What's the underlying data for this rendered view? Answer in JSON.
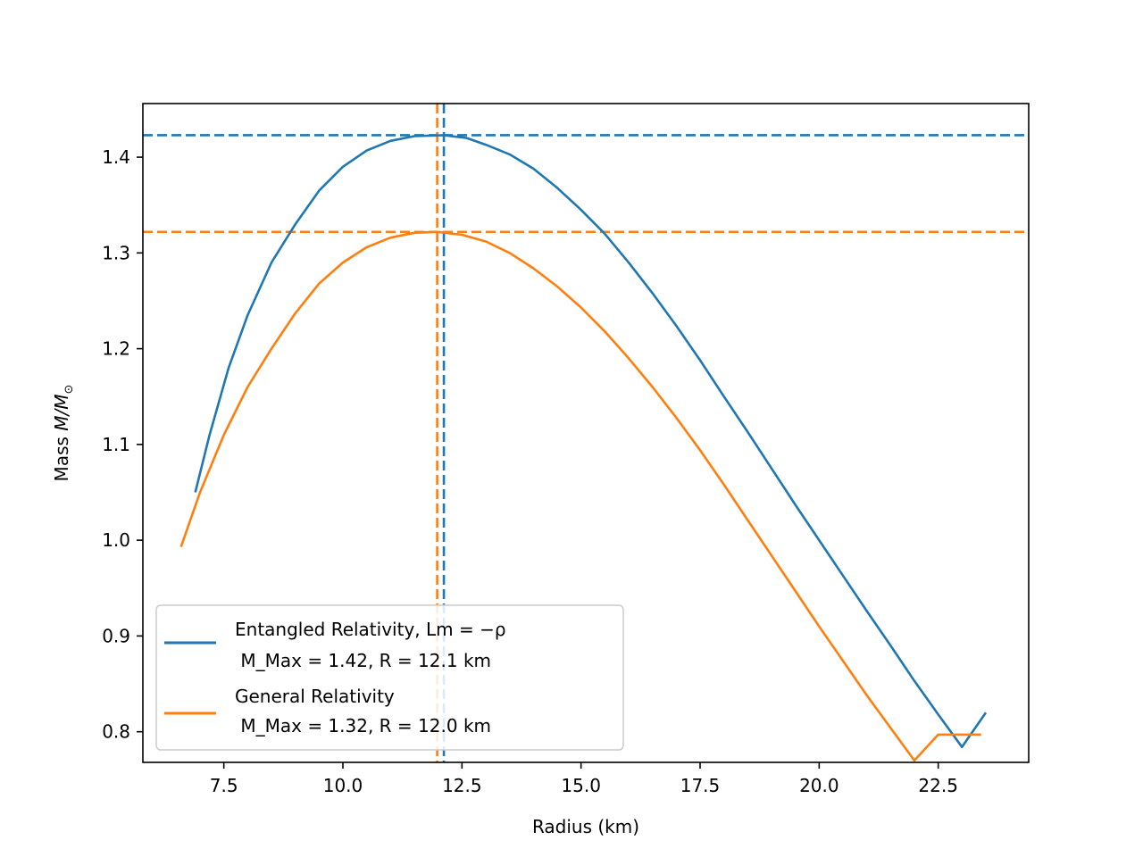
{
  "chart_data": {
    "type": "line",
    "title": "",
    "xlabel": "Radius (km)",
    "ylabel_prefix": "Mass ",
    "ylabel_math": "M/M",
    "ylabel_sub": "⊙",
    "xlim": [
      5.8,
      24.4
    ],
    "ylim": [
      0.768,
      1.456
    ],
    "xticks": [
      7.5,
      10.0,
      12.5,
      15.0,
      17.5,
      20.0,
      22.5
    ],
    "xtick_labels": [
      "7.5",
      "10.0",
      "12.5",
      "15.0",
      "17.5",
      "20.0",
      "22.5"
    ],
    "yticks": [
      0.8,
      0.9,
      1.0,
      1.1,
      1.2,
      1.3,
      1.4
    ],
    "ytick_labels": [
      "0.8",
      "0.9",
      "1.0",
      "1.1",
      "1.2",
      "1.3",
      "1.4"
    ],
    "grid": false,
    "legend_position": "lower-left",
    "series": [
      {
        "name_line1": "Entangled Relativity, Lm = −ρ",
        "name_line2": " M_Max = 1.42, R = 12.1 km",
        "color": "#1f77b4",
        "max_mass": 1.423,
        "max_radius": 12.12,
        "points": [
          [
            6.9,
            1.05
          ],
          [
            7.2,
            1.11
          ],
          [
            7.6,
            1.18
          ],
          [
            8.0,
            1.235
          ],
          [
            8.5,
            1.29
          ],
          [
            9.0,
            1.33
          ],
          [
            9.5,
            1.365
          ],
          [
            10.0,
            1.39
          ],
          [
            10.5,
            1.407
          ],
          [
            11.0,
            1.417
          ],
          [
            11.5,
            1.422
          ],
          [
            12.12,
            1.423
          ],
          [
            12.6,
            1.42
          ],
          [
            13.0,
            1.413
          ],
          [
            13.5,
            1.403
          ],
          [
            14.0,
            1.388
          ],
          [
            14.5,
            1.368
          ],
          [
            15.0,
            1.345
          ],
          [
            15.5,
            1.32
          ],
          [
            16.0,
            1.29
          ],
          [
            16.5,
            1.258
          ],
          [
            17.0,
            1.224
          ],
          [
            17.5,
            1.188
          ],
          [
            18.0,
            1.15
          ],
          [
            18.5,
            1.113
          ],
          [
            19.0,
            1.075
          ],
          [
            19.5,
            1.037
          ],
          [
            20.0,
            1.0
          ],
          [
            20.5,
            0.963
          ],
          [
            21.0,
            0.926
          ],
          [
            21.5,
            0.89
          ],
          [
            22.0,
            0.853
          ],
          [
            22.5,
            0.818
          ],
          [
            23.0,
            0.784
          ],
          [
            23.5,
            0.82
          ]
        ]
      },
      {
        "name_line1": "General Relativity",
        "name_line2": " M_Max = 1.32, R = 12.0 km",
        "color": "#ff7f0e",
        "max_mass": 1.322,
        "max_radius": 11.98,
        "points": [
          [
            6.6,
            0.993
          ],
          [
            7.0,
            1.05
          ],
          [
            7.5,
            1.11
          ],
          [
            8.0,
            1.16
          ],
          [
            8.5,
            1.2
          ],
          [
            9.0,
            1.237
          ],
          [
            9.5,
            1.268
          ],
          [
            10.0,
            1.29
          ],
          [
            10.5,
            1.306
          ],
          [
            11.0,
            1.316
          ],
          [
            11.5,
            1.321
          ],
          [
            11.98,
            1.322
          ],
          [
            12.5,
            1.319
          ],
          [
            13.0,
            1.312
          ],
          [
            13.5,
            1.3
          ],
          [
            14.0,
            1.284
          ],
          [
            14.5,
            1.265
          ],
          [
            15.0,
            1.243
          ],
          [
            15.5,
            1.218
          ],
          [
            16.0,
            1.19
          ],
          [
            16.5,
            1.16
          ],
          [
            17.0,
            1.128
          ],
          [
            17.5,
            1.094
          ],
          [
            18.0,
            1.058
          ],
          [
            18.5,
            1.021
          ],
          [
            19.0,
            0.984
          ],
          [
            19.5,
            0.947
          ],
          [
            20.0,
            0.91
          ],
          [
            20.5,
            0.874
          ],
          [
            21.0,
            0.838
          ],
          [
            21.5,
            0.804
          ],
          [
            22.0,
            0.77
          ],
          [
            22.5,
            0.797
          ],
          [
            23.4,
            0.797
          ]
        ]
      }
    ]
  }
}
